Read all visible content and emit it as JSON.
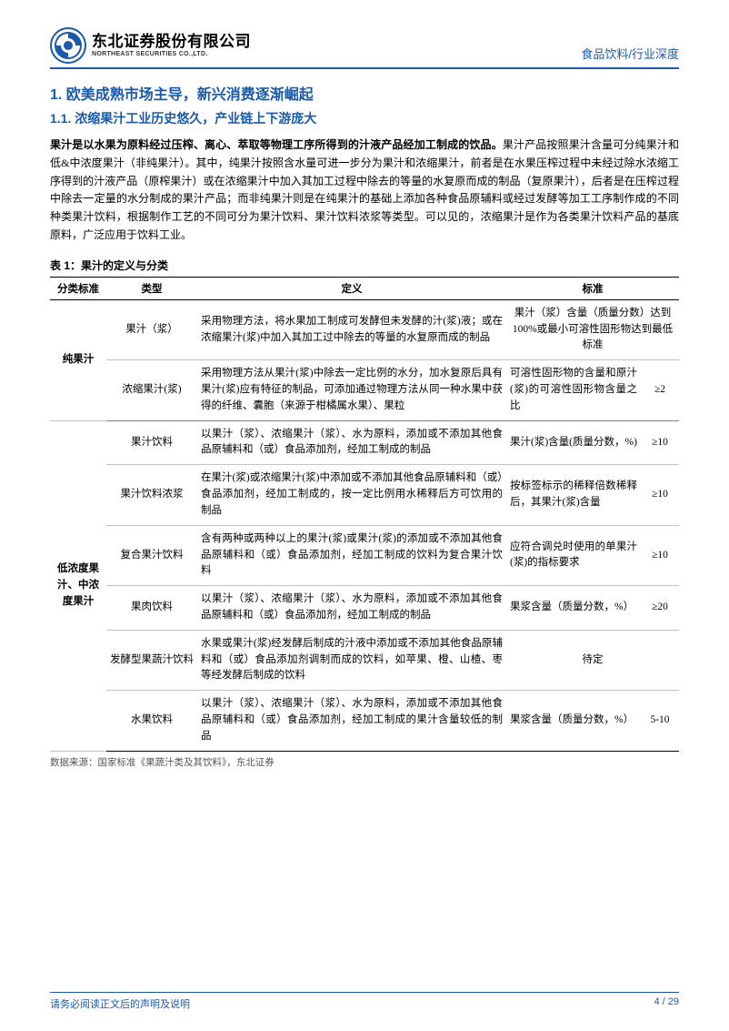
{
  "colors": {
    "accent": "#1a5aa8",
    "text": "#000000",
    "background": "#ffffff",
    "rule_light": "#c0c0c0",
    "rule_mid": "#808080"
  },
  "header": {
    "company_cn": "东北证券股份有限公司",
    "company_en": "NORTHEAST SECURITIES CO.,LTD.",
    "right": "食品饮料/行业深度"
  },
  "headings": {
    "h1": "1.  欧美成熟市场主导，新兴消费逐渐崛起",
    "h2": "1.1.  浓缩果汁工业历史悠久，产业链上下游庞大"
  },
  "paragraph": {
    "lead": "果汁是以水果为原料经过压榨、离心、萃取等物理工序所得到的汁液产品经加工制成的饮品。",
    "rest": "果汁产品按照果汁含量可分纯果汁和低&中浓度果汁（非纯果汁）。其中，纯果汁按照含水量可进一步分为果汁和浓缩果汁，前者是在水果压榨过程中未经过除水浓缩工序得到的汁液产品（原榨果汁）或在浓缩果汁中加入其加工过程中除去的等量的水复原而成的制品（复原果汁），后者是在压榨过程中除去一定量的水分制成的果汁产品；而非纯果汁则是在纯果汁的基础上添加各种食品原辅料或经过发酵等加工工序制作成的不同种类果汁饮料，根据制作工艺的不同可分为果汁饮料、果汁饮料浓浆等类型。可以见的，浓缩果汁是作为各类果汁饮料产品的基底原料，广泛应用于饮料工业。"
  },
  "table": {
    "caption": "表 1：果汁的定义与分类",
    "columns": [
      "分类标准",
      "类型",
      "定义",
      "标准",
      ""
    ],
    "groups": [
      {
        "category": "纯果汁",
        "rows": [
          {
            "type": "果汁（浆）",
            "definition": "采用物理方法，将水果加工制成可发酵但未发酵的汁(浆)液；或在浓缩果汁(浆)中加入其加工过中除去的等量的水复原而成的制品",
            "standard": "果汁（浆）含量（质量分数）达到100%或最小可溶性固形物达到最低标准",
            "value": ""
          },
          {
            "type": "浓缩果汁(浆)",
            "definition": "采用物理方法从果汁(浆)中除去一定比例的水分，加水复原后具有果汁(浆)应有特征的制品，可添加通过物理方法从同一种水果中获得的纤维、囊胞（来源于柑橘属水果）、果粒",
            "standard": "可溶性固形物的含量和原汁(浆)的可溶性固形物含量之比",
            "value": "≥2"
          }
        ]
      },
      {
        "category": "低浓度果汁、中浓度果汁",
        "rows": [
          {
            "type": "果汁饮料",
            "definition": "以果汁（浆）、浓缩果汁（浆）、水为原料，添加或不添加其他食品原辅料和（或）食品添加剂，经加工制成的制品",
            "standard": "果汁(浆)含量(质量分数，%)",
            "value": "≥10"
          },
          {
            "type": "果汁饮料浓浆",
            "definition": "在果汁(浆)或浓缩果汁(浆)中添加或不添加其他食品原辅料和（或）食品添加剂，经加工制成的，按一定比例用水稀释后方可饮用的制品",
            "standard": "按标签标示的稀释倍数稀释后，其果汁(浆)含量",
            "value": "≥10"
          },
          {
            "type": "复合果汁饮料",
            "definition": "含有两种或两种以上的果汁(浆)或果汁(浆)的添加或不添加其他食品原辅料和（或）食品添加剂，经加工制成的饮料为复合果汁饮料",
            "standard": "应符合调兑时使用的单果汁(浆)的指标要求",
            "value": "≥10"
          },
          {
            "type": "果肉饮料",
            "definition": "以果汁（浆）、浓缩果汁（浆）、水为原料，添加或不添加其他食品原辅料和（或）食品添加剂，经加工制成的制品",
            "standard": "果浆含量（质量分数，%）",
            "value": "≥20"
          },
          {
            "type": "发酵型果蔬汁饮料",
            "definition": "水果或果汁(浆)经发酵后制成的汁液中添加或不添加其他食品原辅料和（或）食品添加剂调制而成的饮料，如苹果、橙、山楂、枣等经发酵后制成的饮料",
            "standard": "待定",
            "value": ""
          },
          {
            "type": "水果饮料",
            "definition": "以果汁（浆）、浓缩果汁（浆）、水为原料，添加或不添加其他食品原辅料和（或）食品添加剂，经加工制成的果汁含量较低的制品",
            "standard": "果浆含量（质量分数，%）",
            "value": "5-10"
          }
        ]
      }
    ],
    "source": "数据来源：国家标准《果蔬汁类及其饮料》，东北证券"
  },
  "footer": {
    "left": "请务必阅读正文后的声明及说明",
    "right": "4  /  29"
  }
}
